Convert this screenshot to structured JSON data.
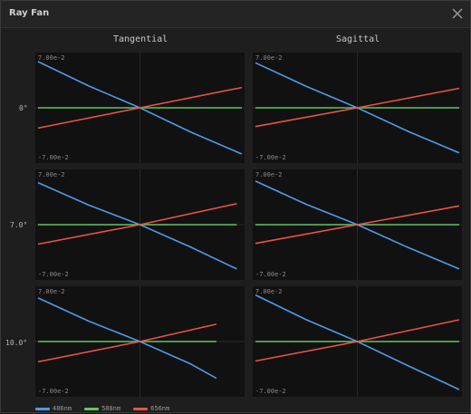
{
  "window": {
    "title": "Ray Fan",
    "close_icon": "close-icon"
  },
  "columns": [
    "Tangential",
    "Sagittal"
  ],
  "rows": [
    "0°",
    "7.0°",
    "10.0°"
  ],
  "axis": {
    "top_label": "7.00e-2",
    "bottom_label": "-7.00e-2"
  },
  "colors": {
    "486nm": "#4c9be8",
    "588nm": "#62c462",
    "656nm": "#e8524a",
    "plot_bg": "#111111",
    "axis": "#2a2a2a"
  },
  "legend": [
    {
      "label": "486nm",
      "color": "#4c9be8"
    },
    {
      "label": "588nm",
      "color": "#62c462"
    },
    {
      "label": "656nm",
      "color": "#e8524a"
    }
  ],
  "chart_data": [
    {
      "type": "line",
      "field": "0°",
      "panel": "Tangential",
      "x": [
        -1,
        1
      ],
      "ylim": [
        -0.07,
        0.07
      ],
      "series": [
        {
          "name": "486nm",
          "color": "#4c9be8",
          "x": [
            -1,
            -0.5,
            0,
            0.5,
            1
          ],
          "values": [
            0.0615,
            0.029,
            0,
            -0.0325,
            -0.0615
          ]
        },
        {
          "name": "588nm",
          "color": "#62c462",
          "x": [
            -1,
            0,
            1
          ],
          "values": [
            0,
            0,
            0
          ]
        },
        {
          "name": "656nm",
          "color": "#e8524a",
          "x": [
            -1,
            0,
            1
          ],
          "values": [
            -0.027,
            0,
            0.027
          ]
        }
      ]
    },
    {
      "type": "line",
      "field": "0°",
      "panel": "Sagittal",
      "x": [
        -1,
        1
      ],
      "ylim": [
        -0.07,
        0.07
      ],
      "series": [
        {
          "name": "486nm",
          "color": "#4c9be8",
          "x": [
            -1,
            -0.5,
            0,
            0.5,
            1
          ],
          "values": [
            0.06,
            0.0285,
            0,
            -0.0315,
            -0.06
          ]
        },
        {
          "name": "588nm",
          "color": "#62c462",
          "x": [
            -1,
            0,
            1
          ],
          "values": [
            0,
            0,
            0
          ]
        },
        {
          "name": "656nm",
          "color": "#e8524a",
          "x": [
            -1,
            0,
            1
          ],
          "values": [
            -0.025,
            0,
            0.026
          ]
        }
      ]
    },
    {
      "type": "line",
      "field": "7.0°",
      "panel": "Tangential",
      "x": [
        -1,
        1
      ],
      "ylim": [
        -0.07,
        0.07
      ],
      "series": [
        {
          "name": "486nm",
          "color": "#4c9be8",
          "x": [
            -1,
            -0.5,
            0,
            0.5,
            0.95
          ],
          "values": [
            0.056,
            0.026,
            0,
            -0.03,
            -0.059
          ]
        },
        {
          "name": "588nm",
          "color": "#62c462",
          "x": [
            -1,
            0,
            0.95
          ],
          "values": [
            0,
            0,
            0
          ]
        },
        {
          "name": "656nm",
          "color": "#e8524a",
          "x": [
            -1,
            0,
            0.95
          ],
          "values": [
            -0.026,
            0,
            0.028
          ]
        }
      ]
    },
    {
      "type": "line",
      "field": "7.0°",
      "panel": "Sagittal",
      "x": [
        -1,
        1
      ],
      "ylim": [
        -0.07,
        0.07
      ],
      "series": [
        {
          "name": "486nm",
          "color": "#4c9be8",
          "x": [
            -1,
            -0.5,
            0,
            0.5,
            1
          ],
          "values": [
            0.058,
            0.027,
            0,
            -0.0305,
            -0.059
          ]
        },
        {
          "name": "588nm",
          "color": "#62c462",
          "x": [
            -1,
            0,
            1
          ],
          "values": [
            0,
            0,
            0
          ]
        },
        {
          "name": "656nm",
          "color": "#e8524a",
          "x": [
            -1,
            0,
            1
          ],
          "values": [
            -0.025,
            0,
            0.025
          ]
        }
      ]
    },
    {
      "type": "line",
      "field": "10.0°",
      "panel": "Tangential",
      "x": [
        -1,
        1
      ],
      "ylim": [
        -0.07,
        0.07
      ],
      "series": [
        {
          "name": "486nm",
          "color": "#4c9be8",
          "x": [
            -1,
            -0.5,
            0,
            0.5,
            0.75
          ],
          "values": [
            0.058,
            0.027,
            0,
            -0.03,
            -0.049
          ]
        },
        {
          "name": "588nm",
          "color": "#62c462",
          "x": [
            -1,
            0,
            0.75
          ],
          "values": [
            0,
            0,
            0
          ]
        },
        {
          "name": "656nm",
          "color": "#e8524a",
          "x": [
            -1,
            0,
            0.75
          ],
          "values": [
            -0.027,
            0,
            0.023
          ]
        }
      ]
    },
    {
      "type": "line",
      "field": "10.0°",
      "panel": "Sagittal",
      "x": [
        -1,
        1
      ],
      "ylim": [
        -0.07,
        0.07
      ],
      "series": [
        {
          "name": "486nm",
          "color": "#4c9be8",
          "x": [
            -1,
            -0.5,
            0,
            0.5,
            1
          ],
          "values": [
            0.062,
            0.029,
            0,
            -0.0325,
            -0.064
          ]
        },
        {
          "name": "588nm",
          "color": "#62c462",
          "x": [
            -1,
            0,
            1
          ],
          "values": [
            0,
            0,
            0
          ]
        },
        {
          "name": "656nm",
          "color": "#e8524a",
          "x": [
            -1,
            0,
            1
          ],
          "values": [
            -0.026,
            0,
            0.029
          ]
        }
      ]
    }
  ]
}
